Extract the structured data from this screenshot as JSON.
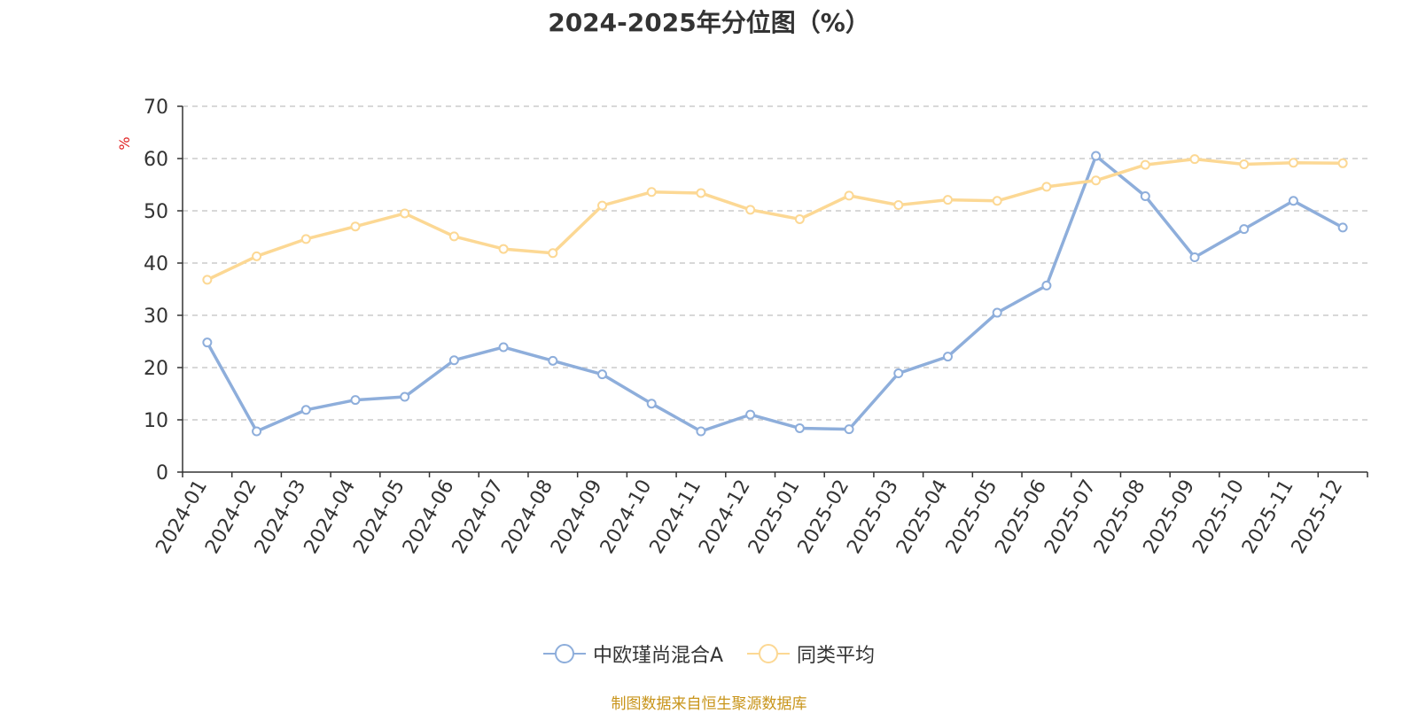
{
  "chart_data": {
    "type": "line",
    "title": "2024-2025年分位图（%）",
    "ylabel": "%",
    "ylim": [
      0,
      70
    ],
    "yticks": [
      0,
      10,
      20,
      30,
      40,
      50,
      60,
      70
    ],
    "grid": true,
    "legend_position": "bottom",
    "categories": [
      "2024-01",
      "2024-02",
      "2024-03",
      "2024-04",
      "2024-05",
      "2024-06",
      "2024-07",
      "2024-08",
      "2024-09",
      "2024-10",
      "2024-11",
      "2024-12",
      "2025-01",
      "2025-02",
      "2025-03",
      "2025-04",
      "2025-05",
      "2025-06",
      "2025-07",
      "2025-08",
      "2025-09",
      "2025-10",
      "2025-11",
      "2025-12"
    ],
    "series": [
      {
        "name": "中欧瑾尚混合A",
        "color": "#8eaedb",
        "values": [
          24.8,
          7.8,
          11.9,
          13.8,
          14.4,
          21.4,
          23.9,
          21.3,
          18.7,
          13.1,
          7.8,
          11.0,
          8.4,
          8.2,
          18.9,
          22.1,
          30.5,
          35.7,
          60.5,
          52.8,
          41.1,
          46.5,
          51.9,
          46.8
        ]
      },
      {
        "name": "同类平均",
        "color": "#fcd894",
        "values": [
          36.8,
          41.3,
          44.6,
          47.0,
          49.5,
          45.1,
          42.7,
          41.9,
          51.0,
          53.6,
          53.4,
          50.2,
          48.4,
          52.9,
          51.1,
          52.1,
          51.9,
          54.6,
          55.8,
          58.8,
          59.9,
          58.9,
          59.2,
          59.1
        ]
      }
    ]
  },
  "source_note": "制图数据来自恒生聚源数据库",
  "colors": {
    "axis": "#333333",
    "grid": "#cccccc",
    "ylabel": "#e02020",
    "source": "#c8941a"
  }
}
